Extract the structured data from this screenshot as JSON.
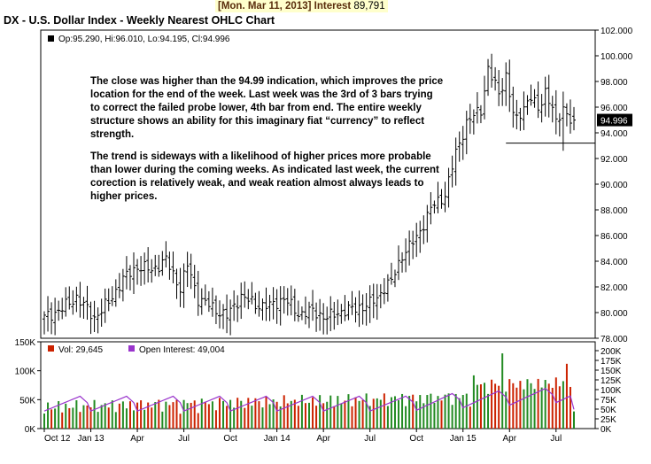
{
  "header": {
    "date": "[Mon. Mar 11, 2013]",
    "label": "Interest",
    "value": "89,791"
  },
  "title": "DX - U.S. Dollar Index - Weekly Nearest OHLC Chart",
  "price_legend": "Op:95.290, Hi:96.010, Lo:94.195, Cl:94.996",
  "last_price_label": "94.996",
  "volume_legend": {
    "vol_label": "Vol: 29,645",
    "oi_label": "Open Interest: 49,004"
  },
  "commentary": {
    "p1": "The close was higher than the 94.99 indication, which improves the price location for the end of the week.  Last week was the 3rd of 3 bars trying to correct the failed probe lower, 4th bar from end.  The entire weekly structure shows an ability for this imaginary fiat “currency” to reflect strength.",
    "p2": "The trend is sideways with a likelihood of higher prices more probable than lower during the coming weeks.  As indicated last week, the current corection is relatively weak, and weak reation almost always leads to higher prices."
  },
  "colors": {
    "up_volume": "#228b22",
    "down_volume": "#cc2200",
    "open_interest": "#9933cc",
    "price_bars": "#000000",
    "header_bg": "#ffffcc"
  },
  "chart_data": [
    {
      "type": "ohlc",
      "title": "DX - U.S. Dollar Index - Weekly Nearest OHLC Chart",
      "x_tick_labels": [
        "Oct 12",
        "Jan 13",
        "Apr",
        "Jul",
        "Oct",
        "Jan 14",
        "Apr",
        "Jul",
        "Oct",
        "Jan 15",
        "Apr",
        "Jul"
      ],
      "y_tick_labels": [
        "78.000",
        "80.000",
        "82.000",
        "84.000",
        "86.000",
        "88.000",
        "90.000",
        "92.000",
        "94.000",
        "96.000",
        "98.000",
        "100.000",
        "102.000"
      ],
      "ylim": [
        78,
        102
      ],
      "support_line": 93.2,
      "last_bar": {
        "open": 95.29,
        "high": 96.01,
        "low": 94.195,
        "close": 94.996
      },
      "weekly_close_anchors": [
        [
          0,
          79.6
        ],
        [
          5,
          80.3
        ],
        [
          9,
          81.2
        ],
        [
          14,
          79.6
        ],
        [
          18,
          80.8
        ],
        [
          22,
          82.6
        ],
        [
          26,
          83.6
        ],
        [
          30,
          83.3
        ],
        [
          34,
          84.1
        ],
        [
          38,
          81.9
        ],
        [
          40,
          83.7
        ],
        [
          43,
          81.1
        ],
        [
          47,
          80.4
        ],
        [
          51,
          79.7
        ],
        [
          55,
          81.3
        ],
        [
          59,
          80.6
        ],
        [
          63,
          80.5
        ],
        [
          67,
          81.1
        ],
        [
          71,
          79.9
        ],
        [
          75,
          80.1
        ],
        [
          79,
          79.6
        ],
        [
          83,
          80.1
        ],
        [
          87,
          80.3
        ],
        [
          91,
          80.7
        ],
        [
          93,
          81.1
        ],
        [
          95,
          82.0
        ],
        [
          97,
          82.4
        ],
        [
          100,
          84.5
        ],
        [
          104,
          85.8
        ],
        [
          108,
          88.1
        ],
        [
          112,
          89.2
        ],
        [
          115,
          92.4
        ],
        [
          118,
          94.8
        ],
        [
          122,
          95.8
        ],
        [
          124,
          99.0
        ],
        [
          127,
          97.0
        ],
        [
          129,
          98.5
        ],
        [
          131,
          95.5
        ],
        [
          132,
          94.9
        ],
        [
          134,
          96.1
        ],
        [
          136,
          96.8
        ],
        [
          138,
          95.7
        ],
        [
          140,
          97.3
        ],
        [
          142,
          95.9
        ],
        [
          143,
          94.6
        ],
        [
          145,
          96.0
        ],
        [
          147,
          95.1
        ],
        [
          148,
          94.996
        ]
      ]
    },
    {
      "type": "bar",
      "title": "",
      "y_tick_labels": [
        "0K",
        "50K",
        "100K",
        "150K"
      ],
      "right_tick_labels": [
        "0K",
        "25K",
        "50K",
        "75K",
        "100K",
        "125K",
        "150K",
        "175K",
        "200K"
      ],
      "series": [
        {
          "name": "Vol: 29,645",
          "last": 29645
        },
        {
          "name": "Open Interest: 49,004",
          "last": 49004
        }
      ],
      "ylim": [
        0,
        150000
      ]
    }
  ]
}
